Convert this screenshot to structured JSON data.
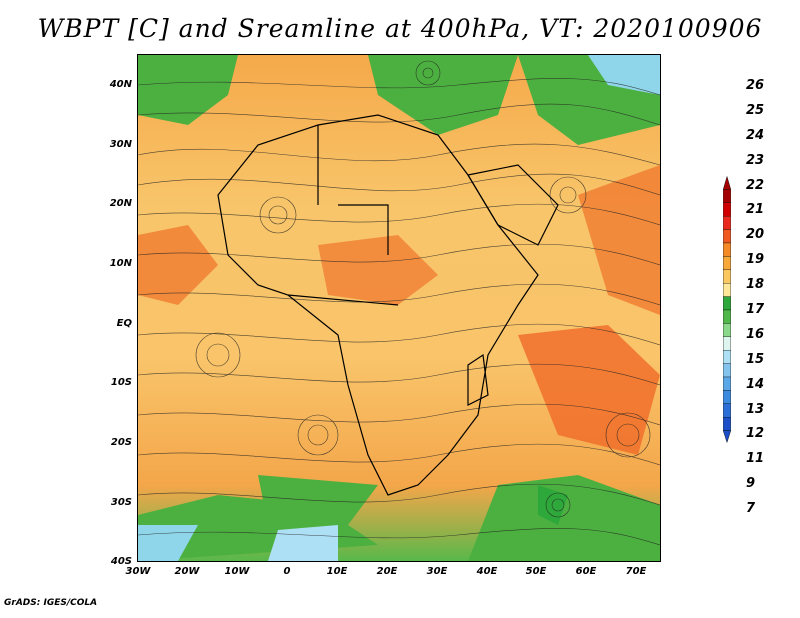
{
  "title": "WBPT [C] and Sreamline at 400hPa, VT: 2020100906",
  "footer": "GrADS: IGES/COLA",
  "latitude_labels": [
    "40N",
    "30N",
    "20N",
    "10N",
    "EQ",
    "10S",
    "20S",
    "30S",
    "40S"
  ],
  "longitude_labels": [
    "30W",
    "20W",
    "10W",
    "0",
    "10E",
    "20E",
    "30E",
    "40E",
    "50E",
    "60E",
    "70E"
  ],
  "colorbar": {
    "levels": [
      "26",
      "25",
      "24",
      "23",
      "22",
      "21",
      "20",
      "19",
      "18",
      "17",
      "16",
      "15",
      "14",
      "13",
      "12",
      "11",
      "9",
      "7"
    ],
    "colors": [
      "#a50000",
      "#d00000",
      "#ea2a1c",
      "#f05a20",
      "#f58a28",
      "#f7a838",
      "#fbc860",
      "#fde89a",
      "#2ea83a",
      "#50b848",
      "#8ad88a",
      "#ddf5ee",
      "#aee0f5",
      "#82c4ee",
      "#5aa8e8",
      "#3a8ae0",
      "#2a6ed8",
      "#1a4fc8"
    ]
  }
}
